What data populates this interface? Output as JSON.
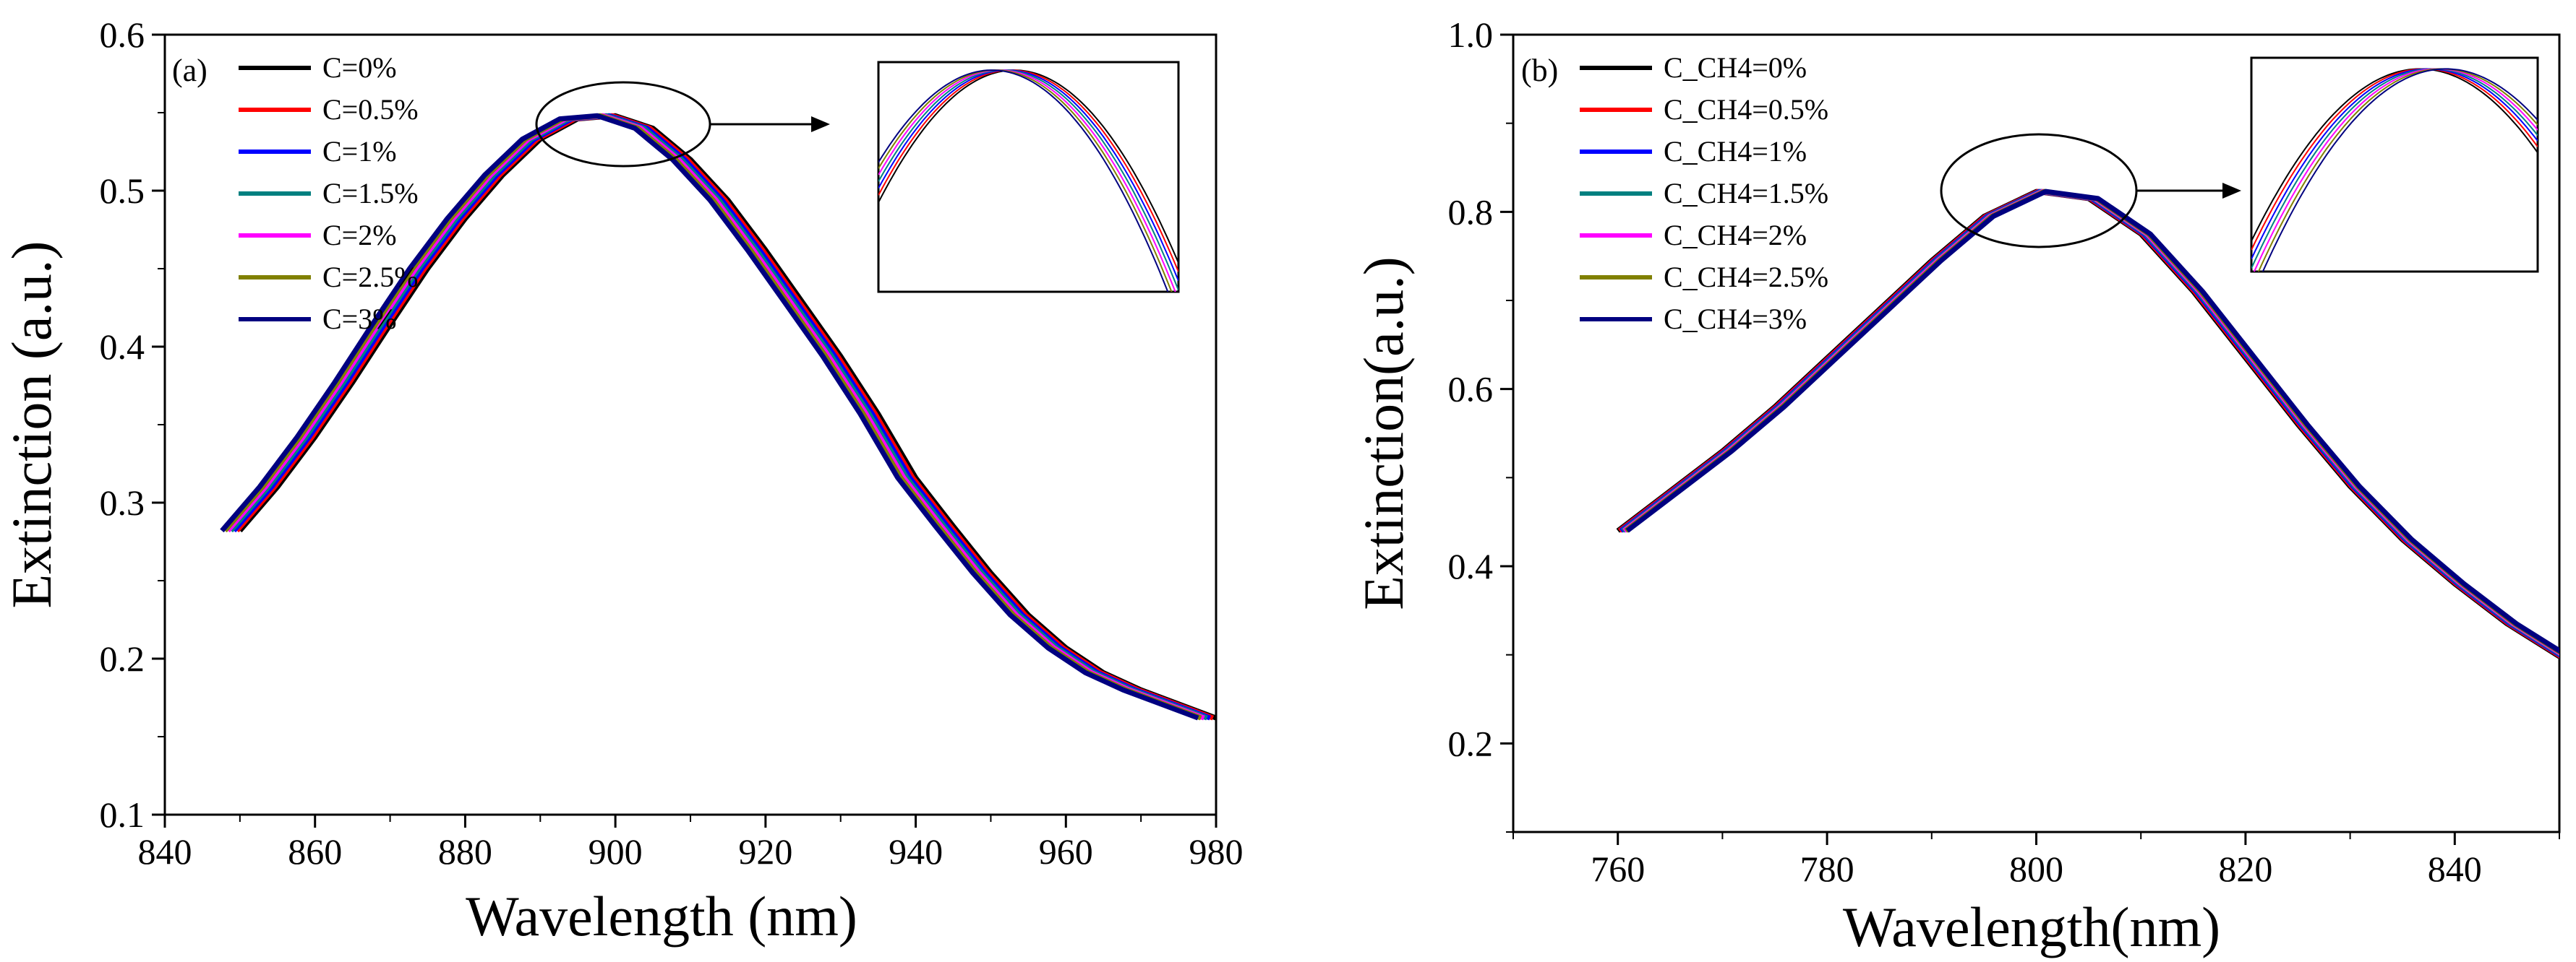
{
  "colors": {
    "C=0%": "#000000",
    "C=0.5%": "#ff0000",
    "C=1%": "#0000ff",
    "C=1.5%": "#008080",
    "C=2%": "#ff00ff",
    "C=2.5%": "#808000",
    "C=3%": "#000080"
  },
  "chart_data": [
    {
      "type": "line",
      "panel_label": "(a)",
      "xlabel": "Wavelength (nm)",
      "ylabel": "Extinction (a.u.)",
      "xlim": [
        840,
        980
      ],
      "ylim": [
        0.1,
        0.6
      ],
      "x_ticks": [
        "840",
        "860",
        "880",
        "900",
        "920",
        "940",
        "960",
        "980"
      ],
      "y_ticks": [
        "0.1",
        "0.2",
        "0.3",
        "0.4",
        "0.5",
        "0.6"
      ],
      "legend_position": "top-left",
      "grid": false,
      "inset": "zoom of peak region (circled), arrow pointing to inset at top-right",
      "x": [
        850,
        855,
        860,
        865,
        870,
        875,
        880,
        885,
        890,
        895,
        900,
        905,
        910,
        915,
        920,
        925,
        930,
        935,
        940,
        945,
        950,
        955,
        960,
        965,
        970,
        975,
        980
      ],
      "series": [
        {
          "name": "C=0%",
          "shift": 0.0,
          "values": [
            0.282,
            0.31,
            0.342,
            0.377,
            0.414,
            0.45,
            0.482,
            0.51,
            0.533,
            0.546,
            0.548,
            0.54,
            0.52,
            0.494,
            0.462,
            0.428,
            0.394,
            0.357,
            0.316,
            0.285,
            0.255,
            0.228,
            0.207,
            0.191,
            0.18,
            0.171,
            0.162
          ]
        },
        {
          "name": "C=0.5%",
          "shift": -0.4,
          "values": [
            0.282,
            0.31,
            0.342,
            0.377,
            0.414,
            0.45,
            0.482,
            0.51,
            0.533,
            0.546,
            0.548,
            0.54,
            0.52,
            0.494,
            0.462,
            0.428,
            0.394,
            0.357,
            0.316,
            0.285,
            0.255,
            0.228,
            0.207,
            0.191,
            0.18,
            0.171,
            0.162
          ]
        },
        {
          "name": "C=1%",
          "shift": -0.8,
          "values": [
            0.282,
            0.31,
            0.342,
            0.377,
            0.414,
            0.45,
            0.482,
            0.51,
            0.533,
            0.546,
            0.548,
            0.54,
            0.52,
            0.494,
            0.462,
            0.428,
            0.394,
            0.357,
            0.316,
            0.285,
            0.255,
            0.228,
            0.207,
            0.191,
            0.18,
            0.171,
            0.162
          ]
        },
        {
          "name": "C=1.5%",
          "shift": -1.2,
          "values": [
            0.282,
            0.31,
            0.342,
            0.377,
            0.414,
            0.45,
            0.482,
            0.51,
            0.533,
            0.546,
            0.548,
            0.54,
            0.52,
            0.494,
            0.462,
            0.428,
            0.394,
            0.357,
            0.316,
            0.285,
            0.255,
            0.228,
            0.207,
            0.191,
            0.18,
            0.171,
            0.162
          ]
        },
        {
          "name": "C=2%",
          "shift": -1.6,
          "values": [
            0.282,
            0.31,
            0.342,
            0.377,
            0.414,
            0.45,
            0.482,
            0.51,
            0.533,
            0.546,
            0.548,
            0.54,
            0.52,
            0.494,
            0.462,
            0.428,
            0.394,
            0.357,
            0.316,
            0.285,
            0.255,
            0.228,
            0.207,
            0.191,
            0.18,
            0.171,
            0.162
          ]
        },
        {
          "name": "C=2.5%",
          "shift": -2.0,
          "values": [
            0.282,
            0.31,
            0.342,
            0.377,
            0.414,
            0.45,
            0.482,
            0.51,
            0.533,
            0.546,
            0.548,
            0.54,
            0.52,
            0.494,
            0.462,
            0.428,
            0.394,
            0.357,
            0.316,
            0.285,
            0.255,
            0.228,
            0.207,
            0.191,
            0.18,
            0.171,
            0.162
          ]
        },
        {
          "name": "C=3%",
          "shift": -2.4,
          "values": [
            0.282,
            0.31,
            0.342,
            0.377,
            0.414,
            0.45,
            0.482,
            0.51,
            0.533,
            0.546,
            0.548,
            0.54,
            0.52,
            0.494,
            0.462,
            0.428,
            0.394,
            0.357,
            0.316,
            0.285,
            0.255,
            0.228,
            0.207,
            0.191,
            0.18,
            0.171,
            0.162
          ]
        }
      ]
    },
    {
      "type": "line",
      "panel_label": "(b)",
      "xlabel": "Wavelength(nm)",
      "ylabel": "Extinction(a.u.)",
      "xlim": [
        750,
        850
      ],
      "ylim": [
        0.1,
        1.0
      ],
      "x_ticks": [
        "760",
        "780",
        "800",
        "820",
        "840"
      ],
      "y_ticks": [
        "0.2",
        "0.4",
        "0.6",
        "0.8",
        "1.0"
      ],
      "legend_position": "top-left",
      "grid": false,
      "inset": "zoom of peak region (circled), arrow pointing to inset at top-right",
      "x": [
        760,
        765,
        770,
        775,
        780,
        785,
        790,
        795,
        800,
        805,
        810,
        815,
        820,
        825,
        830,
        835,
        840,
        845,
        850
      ],
      "series": [
        {
          "name": "C_CH4=0%",
          "shift": 0.0,
          "values": [
            0.44,
            0.485,
            0.53,
            0.58,
            0.635,
            0.69,
            0.745,
            0.795,
            0.823,
            0.815,
            0.775,
            0.71,
            0.635,
            0.56,
            0.49,
            0.43,
            0.38,
            0.335,
            0.298
          ]
        },
        {
          "name": "C_CH4=0.5%",
          "shift": 0.15,
          "values": [
            0.44,
            0.485,
            0.53,
            0.58,
            0.635,
            0.69,
            0.745,
            0.795,
            0.823,
            0.815,
            0.775,
            0.71,
            0.635,
            0.56,
            0.49,
            0.43,
            0.38,
            0.335,
            0.298
          ]
        },
        {
          "name": "C_CH4=1%",
          "shift": 0.3,
          "values": [
            0.44,
            0.485,
            0.53,
            0.58,
            0.635,
            0.69,
            0.745,
            0.795,
            0.823,
            0.815,
            0.775,
            0.71,
            0.635,
            0.56,
            0.49,
            0.43,
            0.38,
            0.335,
            0.298
          ]
        },
        {
          "name": "C_CH4=1.5%",
          "shift": 0.45,
          "values": [
            0.44,
            0.485,
            0.53,
            0.58,
            0.635,
            0.69,
            0.745,
            0.795,
            0.823,
            0.815,
            0.775,
            0.71,
            0.635,
            0.56,
            0.49,
            0.43,
            0.38,
            0.335,
            0.298
          ]
        },
        {
          "name": "C_CH4=2%",
          "shift": 0.6,
          "values": [
            0.44,
            0.485,
            0.53,
            0.58,
            0.635,
            0.69,
            0.745,
            0.795,
            0.823,
            0.815,
            0.775,
            0.71,
            0.635,
            0.56,
            0.49,
            0.43,
            0.38,
            0.335,
            0.298
          ]
        },
        {
          "name": "C_CH4=2.5%",
          "shift": 0.75,
          "values": [
            0.44,
            0.485,
            0.53,
            0.58,
            0.635,
            0.69,
            0.745,
            0.795,
            0.823,
            0.815,
            0.775,
            0.71,
            0.635,
            0.56,
            0.49,
            0.43,
            0.38,
            0.335,
            0.298
          ]
        },
        {
          "name": "C_CH4=3%",
          "shift": 0.9,
          "values": [
            0.44,
            0.485,
            0.53,
            0.58,
            0.635,
            0.69,
            0.745,
            0.795,
            0.823,
            0.815,
            0.775,
            0.71,
            0.635,
            0.56,
            0.49,
            0.43,
            0.38,
            0.335,
            0.298
          ]
        }
      ]
    }
  ]
}
